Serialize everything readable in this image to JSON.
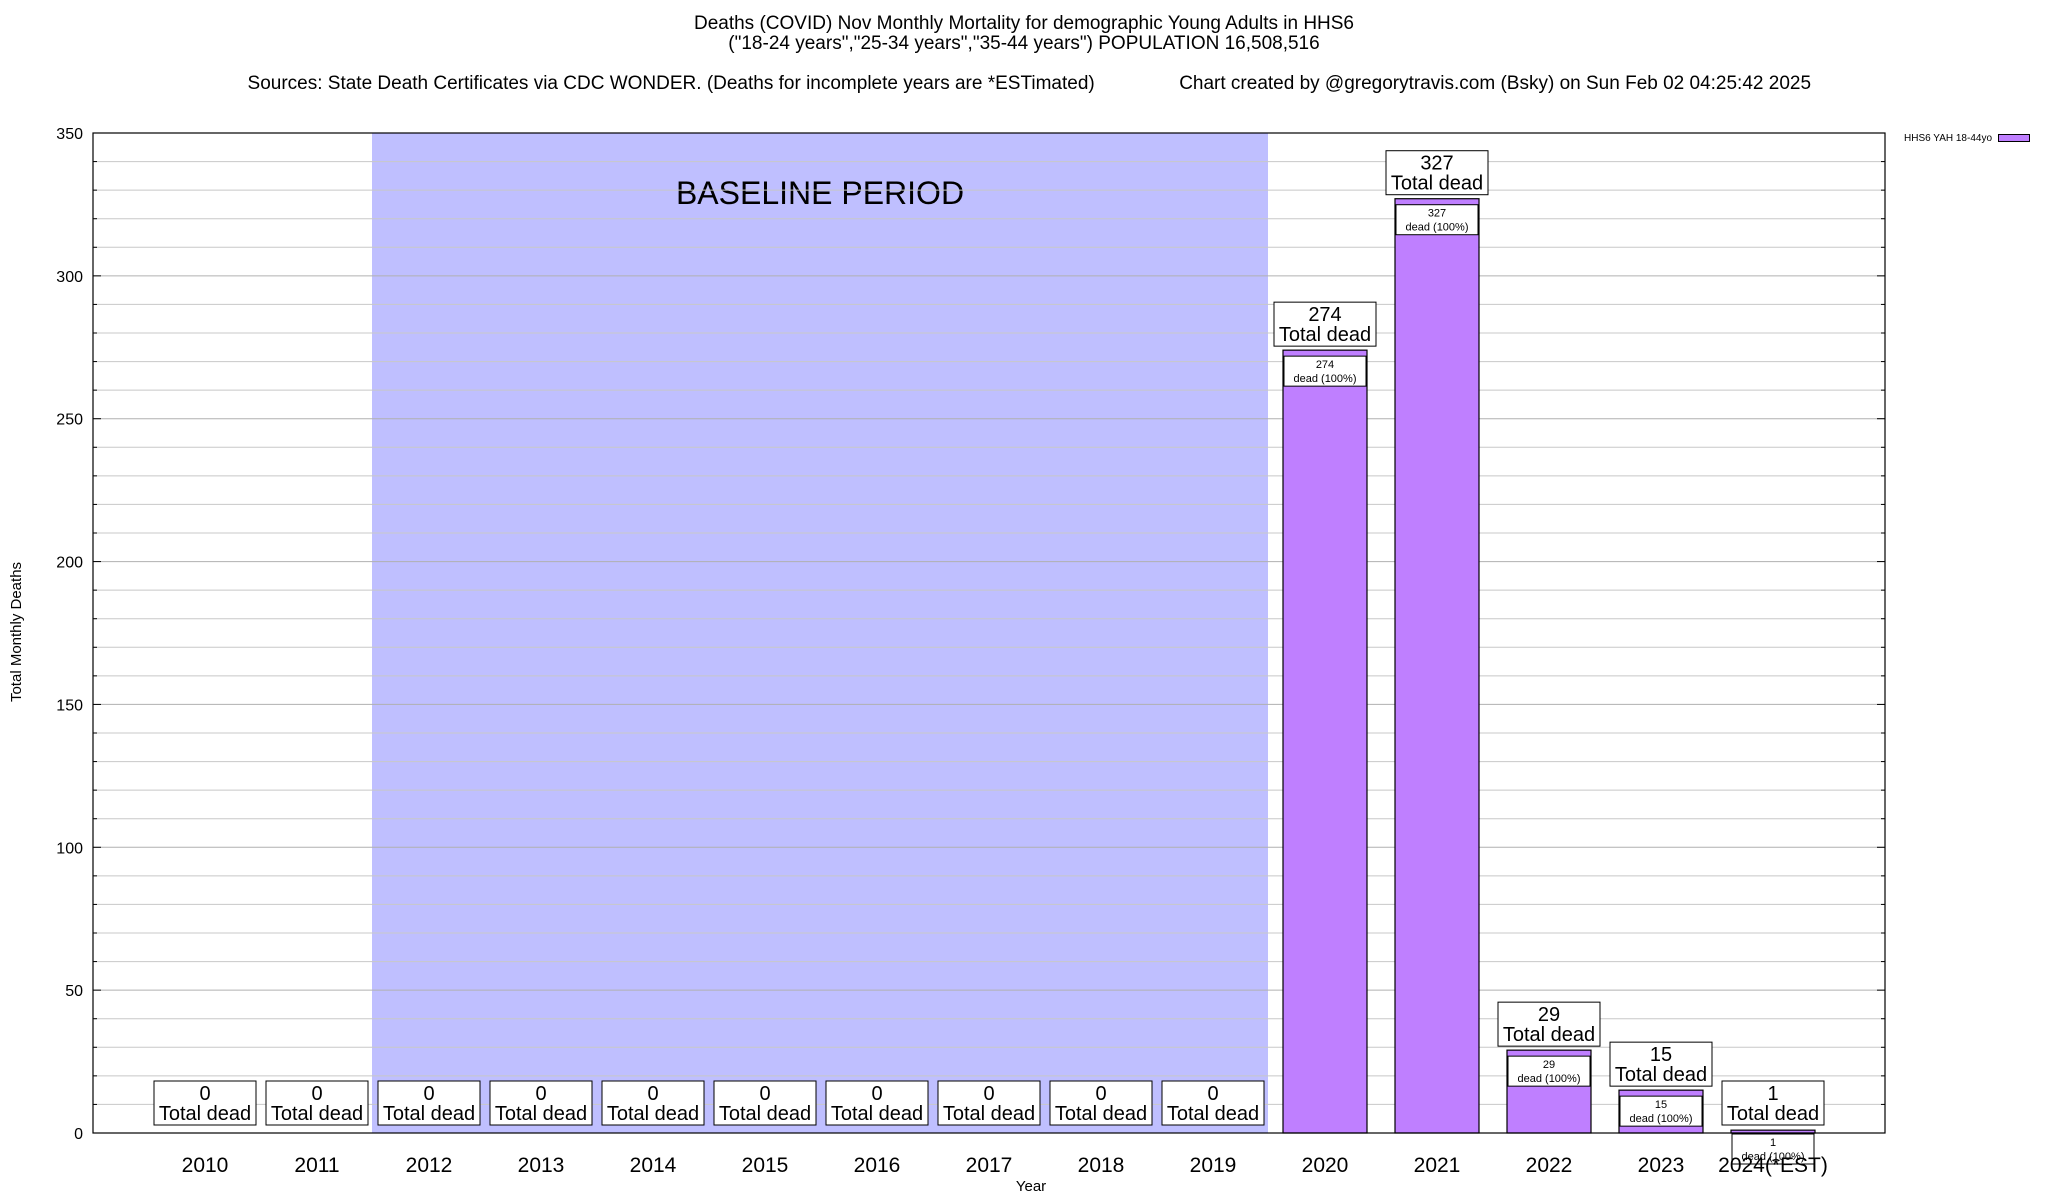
{
  "header": {
    "title_line1": "Deaths (COVID) Nov Monthly Mortality for demographic Young Adults in HHS6",
    "title_line2": "(\"18-24 years\",\"25-34 years\",\"35-44 years\") POPULATION 16,508,516",
    "sources": "Sources: State Death Certificates via CDC WONDER. (Deaths for incomplete years are *ESTimated)",
    "credit": "Chart created by @gregorytravis.com (Bsky) on Sun Feb 02 04:25:42 2025"
  },
  "legend": {
    "label": "HHS6 YAH 18-44yo",
    "color": "#bf7fff"
  },
  "colors": {
    "bar": "#bf7fff",
    "baseline_band": "#bfbfff",
    "grid": "#c8c8c8"
  },
  "chart_data": {
    "type": "bar",
    "title": "Deaths (COVID) Nov Monthly Mortality for demographic Young Adults in HHS6",
    "xlabel": "Year",
    "ylabel": "Total Monthly Deaths",
    "ylim": [
      0,
      350
    ],
    "yticks": [
      0,
      50,
      100,
      150,
      200,
      250,
      300,
      350
    ],
    "grid": true,
    "legend_position": "top-right",
    "categories": [
      "2010",
      "2011",
      "2012",
      "2013",
      "2014",
      "2015",
      "2016",
      "2017",
      "2018",
      "2019",
      "2020",
      "2021",
      "2022",
      "2023",
      "2024(*EST)"
    ],
    "series": [
      {
        "name": "HHS6 YAH 18-44yo",
        "values": [
          0,
          0,
          0,
          0,
          0,
          0,
          0,
          0,
          0,
          0,
          274,
          327,
          29,
          15,
          1
        ]
      }
    ],
    "total_label": "Total dead",
    "inner_label_suffix": "dead (100%)",
    "baseline_period": {
      "label": "BASELINE PERIOD",
      "start": "2012",
      "end": "2019"
    }
  }
}
